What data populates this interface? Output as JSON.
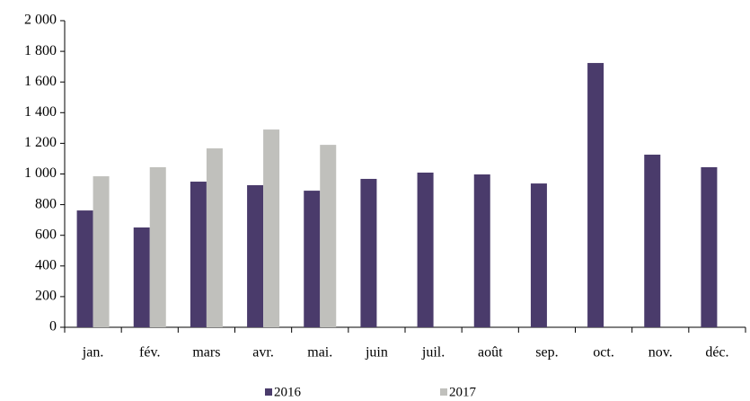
{
  "chart_data": {
    "type": "bar",
    "categories": [
      "jan.",
      "fév.",
      "mars",
      "avr.",
      "mai.",
      "juin",
      "juil.",
      "août",
      "sep.",
      "oct.",
      "nov.",
      "déc."
    ],
    "series": [
      {
        "name": "2016",
        "color": "#4a3b6b",
        "values": [
          762,
          651,
          950,
          927,
          891,
          968,
          1009,
          997,
          938,
          1724,
          1126,
          1044
        ]
      },
      {
        "name": "2017",
        "color": "#c0c0bc",
        "values": [
          985,
          1044,
          1167,
          1290,
          1190,
          null,
          null,
          null,
          null,
          null,
          null,
          null
        ]
      }
    ],
    "ylim": [
      0,
      2000
    ],
    "yticks": [
      0,
      200,
      400,
      600,
      800,
      {
        "value": 1000,
        "label": "1 000"
      },
      {
        "value": 1200,
        "label": "1 200"
      },
      {
        "value": 1400,
        "label": "1 400"
      },
      {
        "value": 1600,
        "label": "1 600"
      },
      {
        "value": 1800,
        "label": "1 800"
      },
      {
        "value": 2000,
        "label": "2 000"
      }
    ],
    "grid": false,
    "legend": "bottom"
  }
}
